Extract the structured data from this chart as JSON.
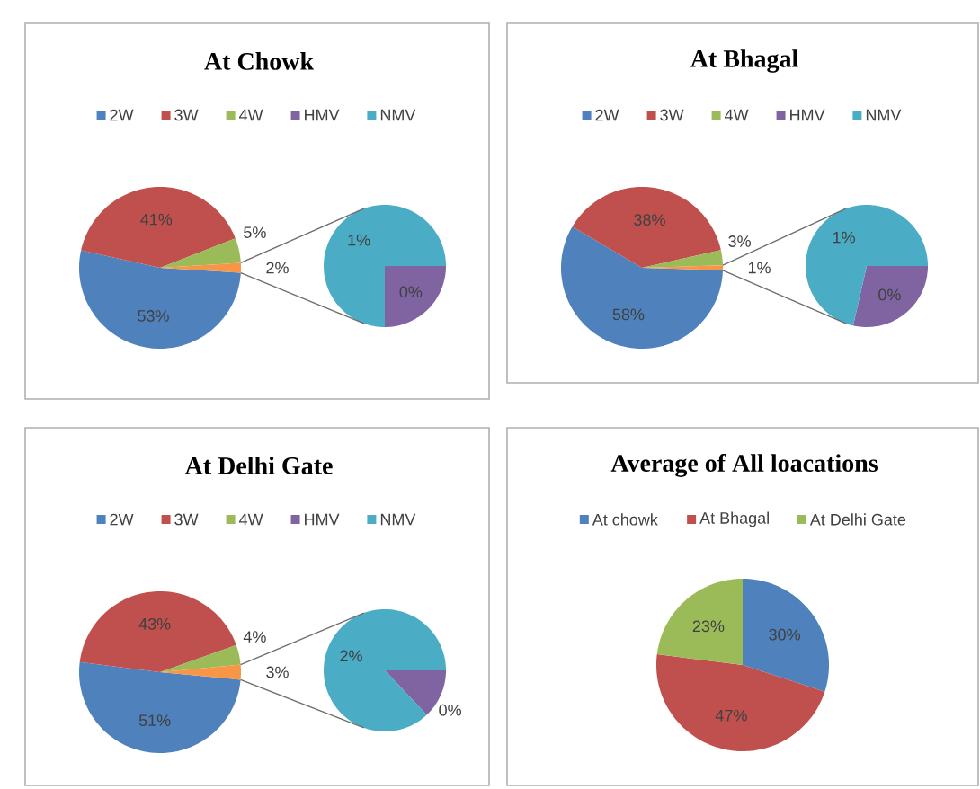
{
  "chart_data": [
    {
      "type": "pie",
      "title": "At Chowk",
      "categories": [
        "2W",
        "3W",
        "4W",
        null
      ],
      "values": [
        53,
        41,
        5,
        2
      ],
      "colors": [
        "#4f81bd",
        "#c0504d",
        "#9bbb59",
        "#f79646"
      ],
      "value_labels": [
        "53%",
        "41%",
        "5%",
        "2%"
      ],
      "legend": "top"
    },
    {
      "type": "pie",
      "categories": [
        "HMV",
        "NMV"
      ],
      "values": [
        0.45,
        1.35
      ],
      "colors": [
        "#8064a2",
        "#4bacc6"
      ],
      "value_labels": [
        "0%",
        "1%"
      ],
      "legend": "top"
    },
    {
      "type": "pie",
      "title": "At Bhagal",
      "categories": [
        "2W",
        "3W",
        "4W",
        null
      ],
      "values": [
        58,
        38,
        3,
        1
      ],
      "colors": [
        "#4f81bd",
        "#c0504d",
        "#9bbb59",
        "#f79646"
      ],
      "value_labels": [
        "58%",
        "38%",
        "3%",
        "1%"
      ],
      "legend": "top"
    },
    {
      "type": "pie",
      "categories": [
        "HMV",
        "NMV"
      ],
      "values": [
        0.4,
        1.0
      ],
      "colors": [
        "#8064a2",
        "#4bacc6"
      ],
      "value_labels": [
        "0%",
        "1%"
      ],
      "legend": "top"
    },
    {
      "type": "pie",
      "title": "At Delhi Gate",
      "categories": [
        "2W",
        "3W",
        "4W",
        null
      ],
      "values": [
        51,
        43,
        4,
        3
      ],
      "colors": [
        "#4f81bd",
        "#c0504d",
        "#9bbb59",
        "#f79646"
      ],
      "value_labels": [
        "51%",
        "43%",
        "4%",
        "3%"
      ],
      "legend": "top"
    },
    {
      "type": "pie",
      "categories": [
        "HMV",
        "NMV"
      ],
      "values": [
        0.35,
        2.35
      ],
      "colors": [
        "#8064a2",
        "#4bacc6"
      ],
      "value_labels": [
        "0%",
        "2%"
      ],
      "legend": "top"
    },
    {
      "type": "pie",
      "title": "Average of All loacations",
      "categories": [
        "At chowk",
        "At Bhagal",
        "At Delhi Gate"
      ],
      "values": [
        30,
        47,
        23
      ],
      "colors": [
        "#4f81bd",
        "#c0504d",
        "#9bbb59"
      ],
      "value_labels": [
        "30%",
        "47%",
        "23%"
      ],
      "legend": "top"
    }
  ]
}
